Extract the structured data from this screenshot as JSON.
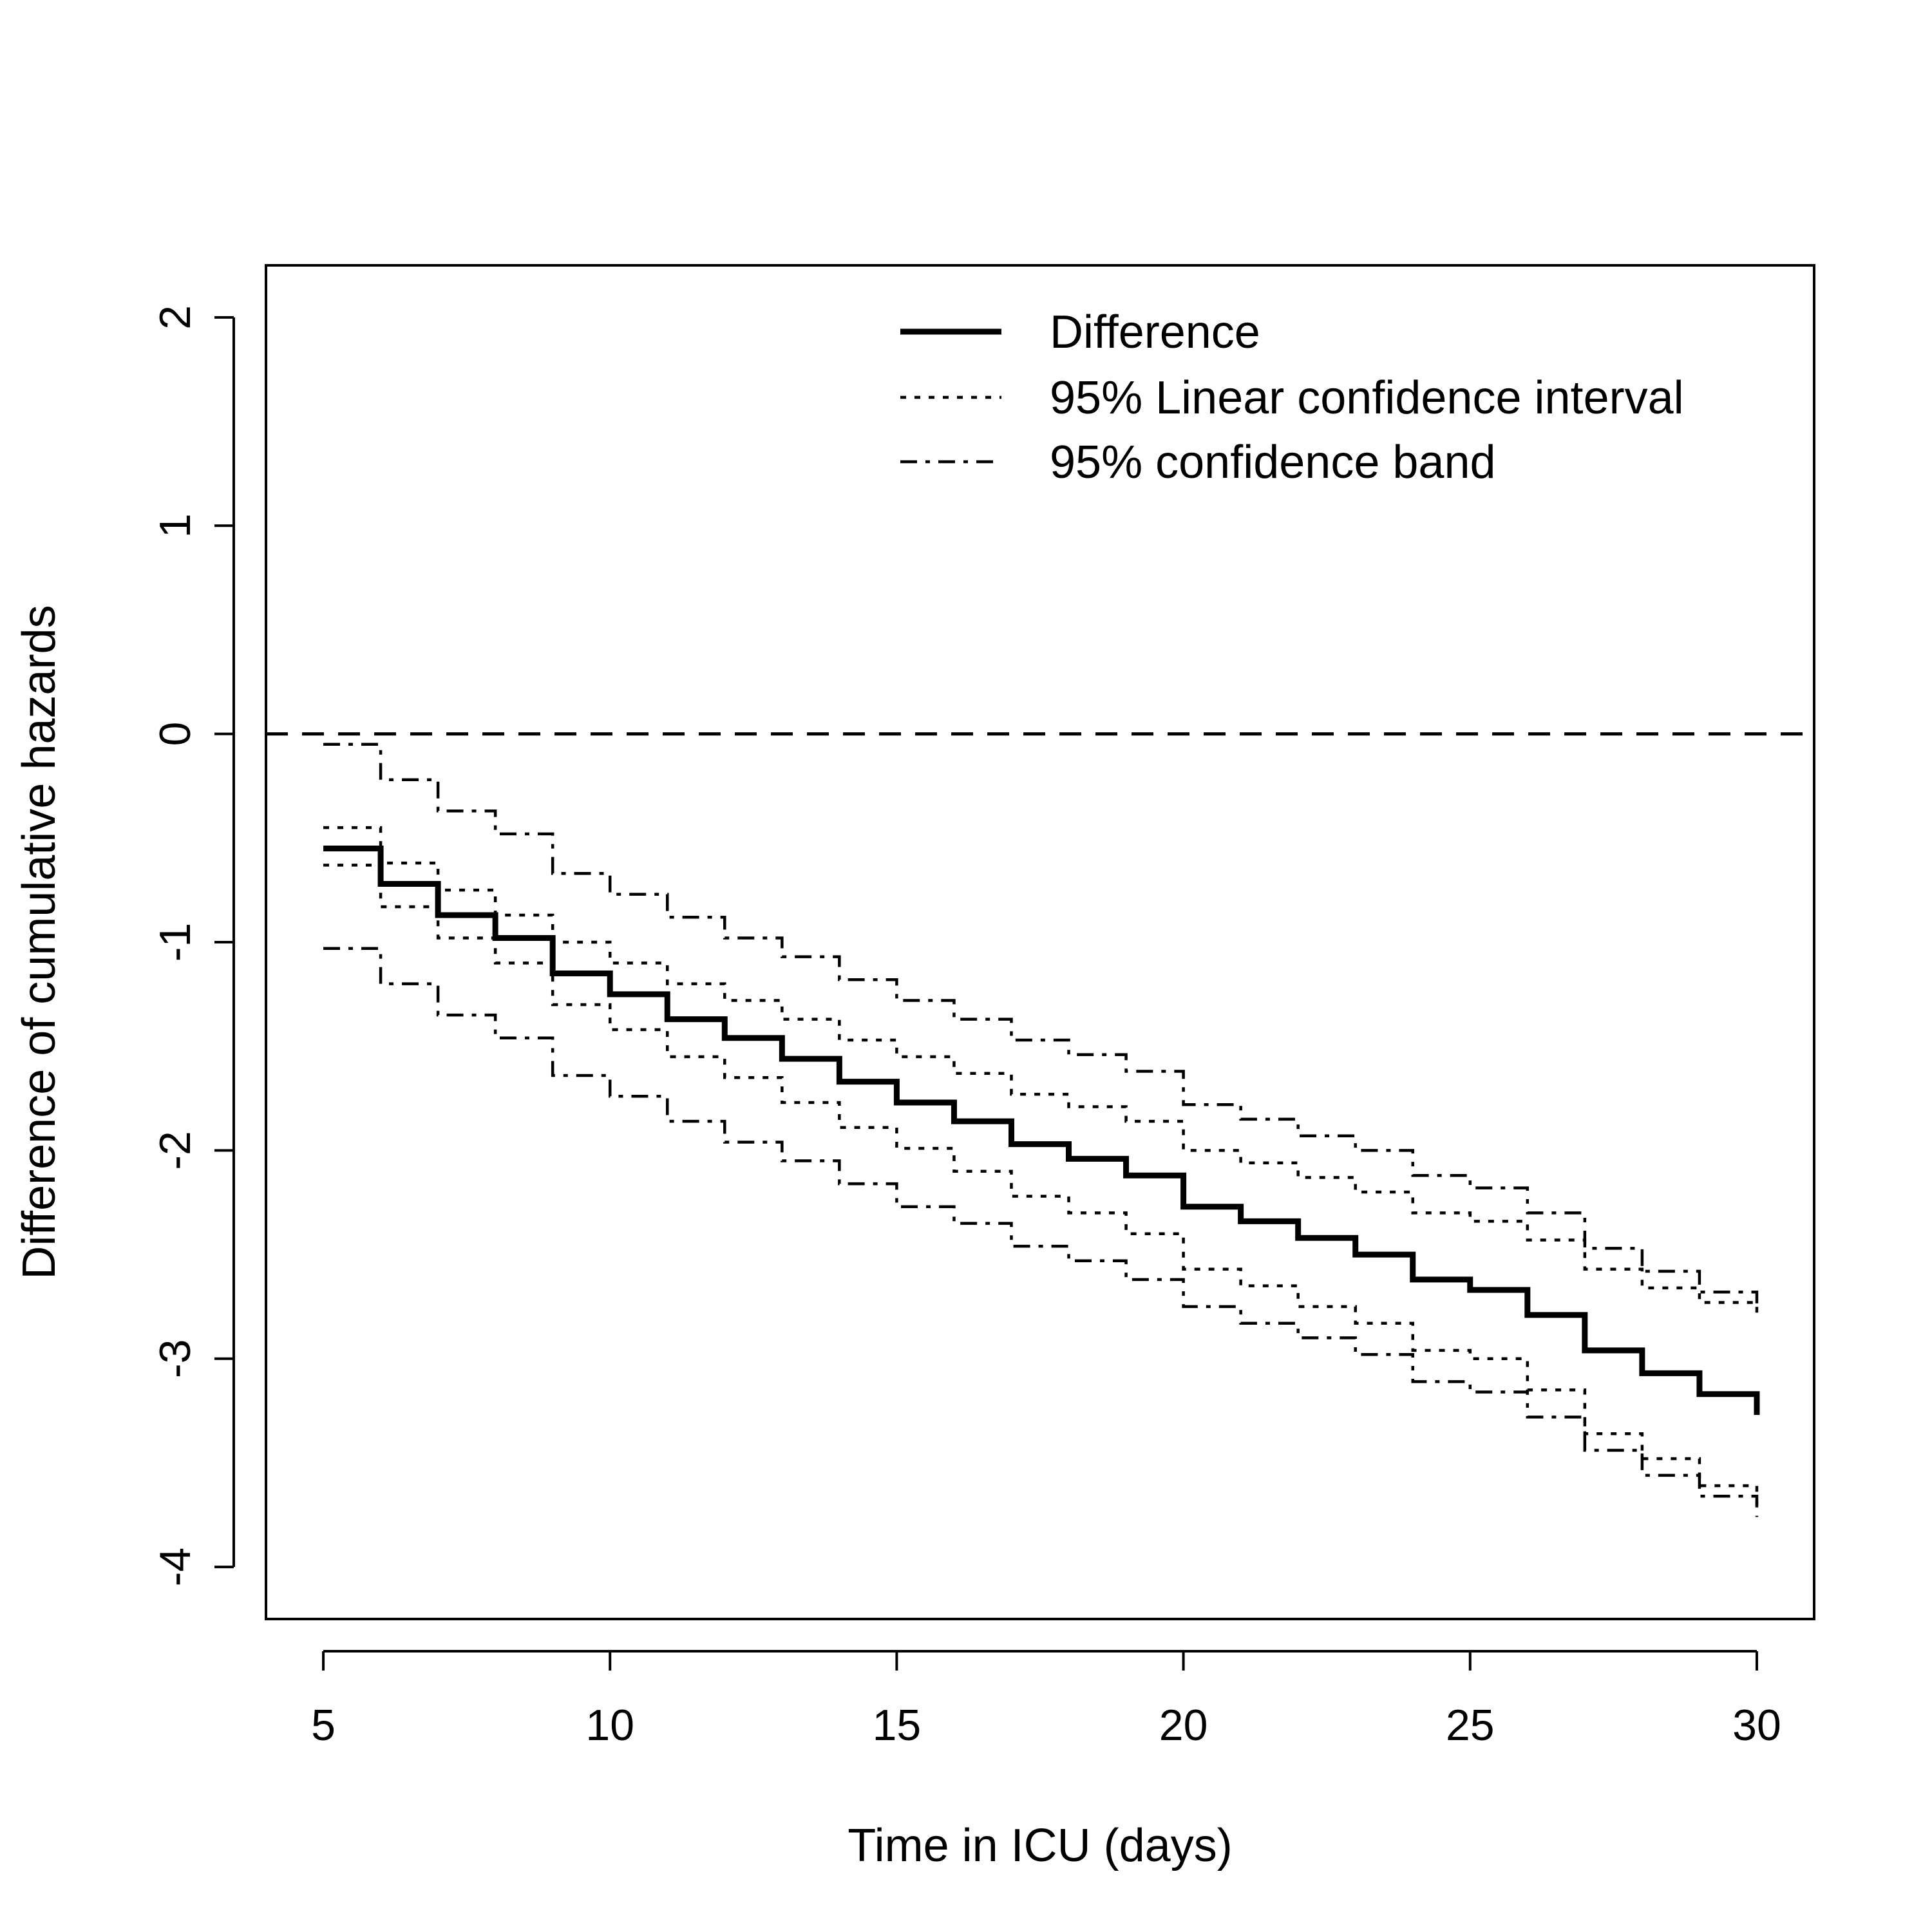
{
  "chart_data": {
    "type": "line",
    "title": "",
    "xlabel": "Time in ICU (days)",
    "ylabel": "Difference of cumulative hazards",
    "xlim": [
      4,
      31
    ],
    "ylim": [
      -4.25,
      2.25
    ],
    "x_ticks": [
      5,
      10,
      15,
      20,
      25,
      30
    ],
    "y_ticks": [
      -4,
      -3,
      -2,
      -1,
      0,
      1,
      2
    ],
    "x_tick_labels": [
      "5",
      "10",
      "15",
      "20",
      "25",
      "30"
    ],
    "y_tick_labels": [
      "-4",
      "-3",
      "-2",
      "-1",
      "0",
      "1",
      "2"
    ],
    "reference_line": {
      "y": 0,
      "style": "dashed"
    },
    "step_x": [
      5,
      6,
      7,
      8,
      9,
      10,
      11,
      12,
      13,
      14,
      15,
      16,
      17,
      18,
      19,
      20,
      21,
      22,
      23,
      24,
      25,
      26,
      27,
      28,
      29,
      30
    ],
    "series": [
      {
        "name": "Difference",
        "style": "solid",
        "values": [
          -0.55,
          -0.72,
          -0.87,
          -0.98,
          -1.15,
          -1.25,
          -1.37,
          -1.46,
          -1.56,
          -1.67,
          -1.77,
          -1.86,
          -1.97,
          -2.04,
          -2.12,
          -2.27,
          -2.34,
          -2.42,
          -2.5,
          -2.62,
          -2.67,
          -2.79,
          -2.96,
          -3.07,
          -3.17,
          -3.27
        ]
      },
      {
        "name": "95% Linear confidence interval",
        "part": "upper",
        "style": "dotted",
        "values": [
          -0.45,
          -0.62,
          -0.75,
          -0.87,
          -1.0,
          -1.1,
          -1.2,
          -1.28,
          -1.37,
          -1.47,
          -1.55,
          -1.63,
          -1.73,
          -1.79,
          -1.86,
          -2.0,
          -2.06,
          -2.13,
          -2.2,
          -2.3,
          -2.34,
          -2.43,
          -2.57,
          -2.66,
          -2.73,
          -2.8
        ]
      },
      {
        "name": "95% Linear confidence interval",
        "part": "lower",
        "style": "dotted",
        "values": [
          -0.63,
          -0.83,
          -0.98,
          -1.1,
          -1.3,
          -1.42,
          -1.55,
          -1.65,
          -1.77,
          -1.89,
          -1.99,
          -2.1,
          -2.22,
          -2.3,
          -2.4,
          -2.57,
          -2.65,
          -2.75,
          -2.83,
          -2.96,
          -3.0,
          -3.15,
          -3.36,
          -3.48,
          -3.61,
          -3.73
        ]
      },
      {
        "name": "95% confidence band",
        "part": "upper",
        "style": "dashdot",
        "values": [
          -0.05,
          -0.22,
          -0.37,
          -0.48,
          -0.67,
          -0.77,
          -0.88,
          -0.98,
          -1.07,
          -1.18,
          -1.28,
          -1.37,
          -1.47,
          -1.54,
          -1.62,
          -1.78,
          -1.85,
          -1.93,
          -2.0,
          -2.12,
          -2.18,
          -2.3,
          -2.47,
          -2.58,
          -2.68,
          -2.77
        ]
      },
      {
        "name": "95% confidence band",
        "part": "lower",
        "style": "dashdot",
        "values": [
          -1.03,
          -1.2,
          -1.35,
          -1.46,
          -1.64,
          -1.74,
          -1.86,
          -1.96,
          -2.05,
          -2.16,
          -2.27,
          -2.35,
          -2.46,
          -2.53,
          -2.62,
          -2.75,
          -2.83,
          -2.9,
          -2.98,
          -3.11,
          -3.16,
          -3.28,
          -3.44,
          -3.56,
          -3.66,
          -3.76
        ]
      }
    ],
    "legend": {
      "position": "top-right",
      "entries": [
        {
          "label": "Difference",
          "style": "solid"
        },
        {
          "label": "95% Linear confidence interval",
          "style": "dotted"
        },
        {
          "label": "95% confidence band",
          "style": "dashdot"
        }
      ]
    }
  }
}
